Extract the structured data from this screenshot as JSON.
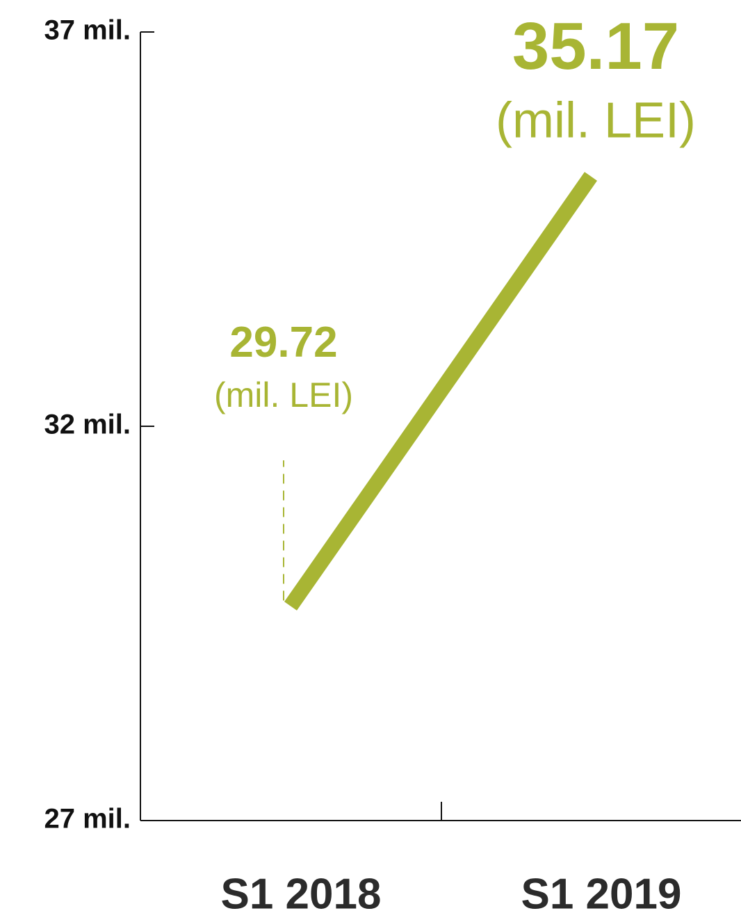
{
  "chart_data": {
    "type": "line",
    "categories": [
      "S1 2018",
      "S1 2019"
    ],
    "series": [
      {
        "name": null,
        "color": "#a8b534",
        "values": [
          29.72,
          35.17
        ]
      }
    ],
    "value_unit": "(mil. LEI)",
    "ylim": [
      27,
      37
    ],
    "yticks": [
      {
        "value": 27,
        "label": "27 mil."
      },
      {
        "value": 32,
        "label": "32 mil."
      },
      {
        "value": 37,
        "label": "37 mil."
      }
    ]
  }
}
